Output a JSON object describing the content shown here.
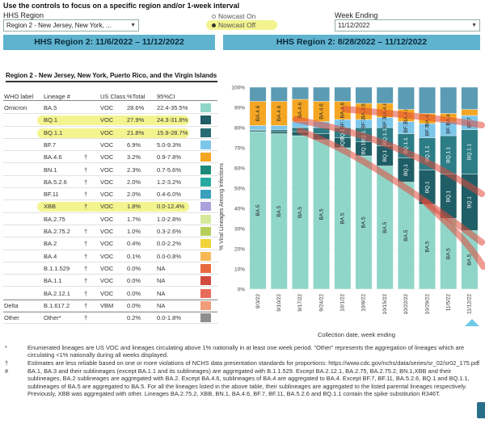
{
  "controls": {
    "instruction": "Use the controls to focus on a specific region and/or 1-week interval",
    "region_label": "HHS Region",
    "region_value": "Region 2 - New Jersey, New York, ...",
    "nowcast_on": "Nowcast On",
    "nowcast_off": "Nowcast Off",
    "week_label": "Week Ending",
    "week_value": "11/12/2022"
  },
  "panels": {
    "left_title": "HHS Region 2: 11/6/2022 – 11/12/2022",
    "right_title": "HHS Region 2: 8/28/2022 – 11/12/2022"
  },
  "table": {
    "title": "Region 2 - New Jersey, New York, Puerto Rico, and the Virgin Islands",
    "headers": [
      "WHO label",
      "Lineage #",
      "US Class",
      "%Total",
      "95%CI"
    ],
    "rows": [
      {
        "who": "Omicron",
        "lineage": "BA.5",
        "mark": "",
        "cls": "VOC",
        "pct": "28.6%",
        "ci": "22.4-35.5%",
        "color": "#8fd6c9"
      },
      {
        "who": "",
        "lineage": "BQ.1",
        "mark": "",
        "cls": "VOC",
        "pct": "27.9%",
        "ci": "24.3-31.8%",
        "color": "#1f5e66"
      },
      {
        "who": "",
        "lineage": "BQ.1.1",
        "mark": "",
        "cls": "VOC",
        "pct": "21.8%",
        "ci": "15.9-28.7%",
        "color": "#246b73"
      },
      {
        "who": "",
        "lineage": "BF.7",
        "mark": "",
        "cls": "VOC",
        "pct": "6.9%",
        "ci": "5.0-9.3%",
        "color": "#7cc6ea"
      },
      {
        "who": "",
        "lineage": "BA.4.6",
        "mark": "†",
        "cls": "VOC",
        "pct": "3.2%",
        "ci": "0.9-7.8%",
        "color": "#f4a623"
      },
      {
        "who": "",
        "lineage": "BN.1",
        "mark": "†",
        "cls": "VOC",
        "pct": "2.3%",
        "ci": "0.7-5.6%",
        "color": "#1b8a7a"
      },
      {
        "who": "",
        "lineage": "BA.5.2.6",
        "mark": "†",
        "cls": "VOC",
        "pct": "2.0%",
        "ci": "1.2-3.2%",
        "color": "#28a9a0"
      },
      {
        "who": "",
        "lineage": "BF.11",
        "mark": "†",
        "cls": "VOC",
        "pct": "2.0%",
        "ci": "0.4-6.0%",
        "color": "#3aa0bd"
      },
      {
        "who": "",
        "lineage": "XBB",
        "mark": "†",
        "cls": "VOC",
        "pct": "1.8%",
        "ci": "0.0-12.4%",
        "color": "#a9a2dc"
      },
      {
        "who": "",
        "lineage": "BA.2.75",
        "mark": "",
        "cls": "VOC",
        "pct": "1.7%",
        "ci": "1.0-2.8%",
        "color": "#d6e89a"
      },
      {
        "who": "",
        "lineage": "BA.2.75.2",
        "mark": "†",
        "cls": "VOC",
        "pct": "1.0%",
        "ci": "0.3-2.6%",
        "color": "#b6cf5a"
      },
      {
        "who": "",
        "lineage": "BA.2",
        "mark": "†",
        "cls": "VOC",
        "pct": "0.4%",
        "ci": "0.0-2.2%",
        "color": "#f2d23a"
      },
      {
        "who": "",
        "lineage": "BA.4",
        "mark": "†",
        "cls": "VOC",
        "pct": "0.1%",
        "ci": "0.0-0.8%",
        "color": "#f7b955"
      },
      {
        "who": "",
        "lineage": "B.1.1.529",
        "mark": "†",
        "cls": "VOC",
        "pct": "0.0%",
        "ci": "NA",
        "color": "#e8683c"
      },
      {
        "who": "",
        "lineage": "BA.1.1",
        "mark": "†",
        "cls": "VOC",
        "pct": "0.0%",
        "ci": "NA",
        "color": "#d14a3c"
      },
      {
        "who": "",
        "lineage": "BA.2.12.1",
        "mark": "†",
        "cls": "VOC",
        "pct": "0.0%",
        "ci": "NA",
        "color": "#e86c5a"
      },
      {
        "who": "Delta",
        "lineage": "B.1.617.2",
        "mark": "†",
        "cls": "VBM",
        "pct": "0.0%",
        "ci": "NA",
        "color": "#f39c7a"
      },
      {
        "who": "Other",
        "lineage": "Other*",
        "mark": "†",
        "cls": "",
        "pct": "0.2%",
        "ci": "0.0-1.8%",
        "color": "#8e8e8e"
      }
    ]
  },
  "chart_data": {
    "type": "bar",
    "stacked": true,
    "xlabel": "Collection date, week ending",
    "ylabel": "% Viral Lineages Among Infections",
    "ylim": [
      0,
      100
    ],
    "yticks": [
      "0%",
      "10%",
      "20%",
      "30%",
      "40%",
      "50%",
      "60%",
      "70%",
      "80%",
      "90%",
      "100%"
    ],
    "categories": [
      "9/3/22",
      "9/10/22",
      "9/17/22",
      "9/24/22",
      "10/1/22",
      "10/8/22",
      "10/15/22",
      "10/22/22",
      "10/29/22",
      "11/5/22",
      "11/12/22"
    ],
    "series": [
      {
        "name": "BA.5",
        "color": "#8fd6c9",
        "values": [
          78,
          77,
          76,
          74,
          70,
          66,
          61,
          53,
          42,
          35,
          29
        ]
      },
      {
        "name": "BQ.1",
        "color": "#1f5e66",
        "values": [
          0.5,
          1,
          2,
          3,
          5,
          7,
          10,
          12,
          17,
          22,
          28
        ]
      },
      {
        "name": "BQ.1.1",
        "color": "#2d7d86",
        "values": [
          0.5,
          1,
          2,
          3,
          5,
          7,
          9,
          12,
          16,
          19,
          22
        ]
      },
      {
        "name": "BF.7",
        "color": "#7cc6ea",
        "values": [
          2,
          2,
          3,
          3,
          4,
          4,
          5,
          6,
          7,
          7,
          7
        ]
      },
      {
        "name": "BA.4.6",
        "color": "#f4a623",
        "values": [
          12,
          12,
          11,
          10,
          9,
          8,
          7,
          6,
          5,
          4,
          3
        ]
      },
      {
        "name": "Other lineages",
        "color": "#5b9bb3",
        "values": [
          7,
          7,
          6,
          7,
          7,
          8,
          8,
          11,
          13,
          13,
          11
        ]
      }
    ],
    "bar_labels": {
      "BA.5": "BA.5",
      "BQ.1": "BQ.1",
      "BQ.1.1": "BQ.1.1",
      "BF.7": "BF.7",
      "BA.4.6": "BA.4.6"
    }
  },
  "footnotes": [
    {
      "mark": "*",
      "text": "Enumerated lineages are US VOC and lineages circulating above 1% nationally in at least one week period. \"Other\" represents the aggregation of lineages which are circulating <1% nationally during all weeks displayed."
    },
    {
      "mark": "†",
      "text": "Estimates are less reliable based on one or more violations of NCHS data presentation standards for proportions: https://www.cdc.gov/nchs/data/series/sr_02/sr02_175.pdf"
    },
    {
      "mark": "#",
      "text": "BA.1, BA.3 and their sublineages (except BA.1.1 and its sublineages) are aggregated with B.1.1.529. Except BA.2.12.1, BA.2.75, BA.2.75.2, BN.1,XBB and their sublineages, BA.2 sublineages are aggregated with BA.2. Except BA.4.6, sublineages of BA.4 are aggregated to BA.4. Except BF.7, BF.11, BA.5.2.6, BQ.1 and BQ.1.1, sublineages of BA.5 are aggregated to BA.5. For all the lineages listed in the above table, their sublineages are aggregated to the listed parental lineages respectively. Previously, XBB was aggregated with other. Lineages BA.2.75.2, XBB, BN.1, BA.4.6, BF.7, BF.11, BA.5.2.6 and BQ.1.1 contain the spike substitution R346T."
    }
  ]
}
